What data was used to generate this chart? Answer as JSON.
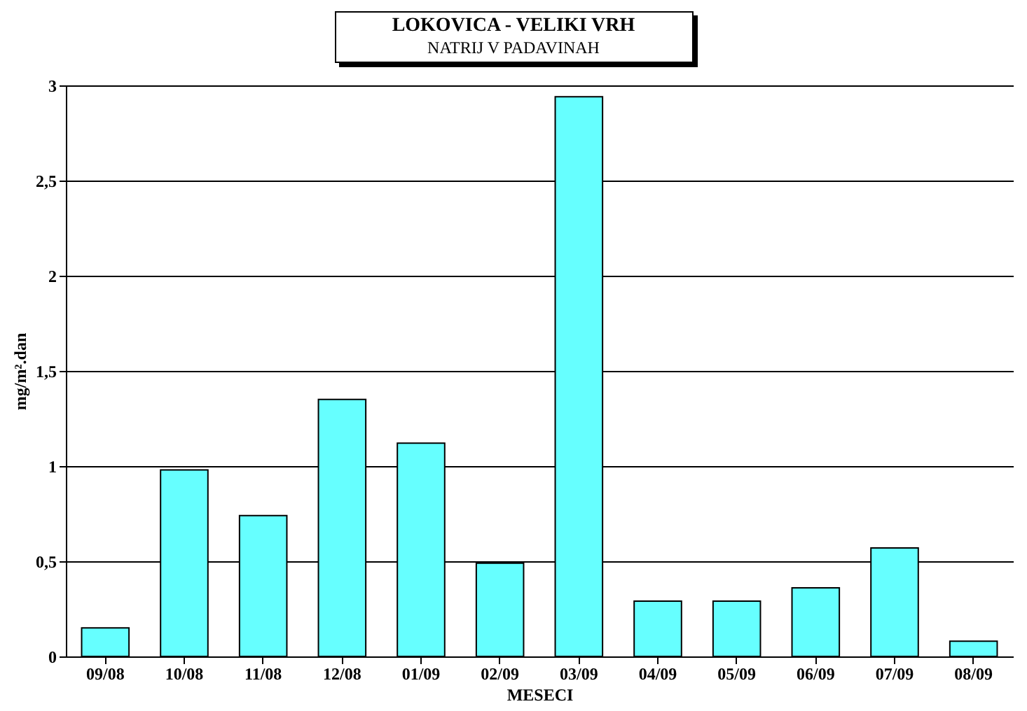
{
  "chart_data": {
    "type": "bar",
    "title": "LOKOVICA - VELIKI VRH",
    "subtitle": "NATRIJ V PADAVINAH",
    "xlabel": "MESECI",
    "ylabel": "mg/m².dan",
    "categories": [
      "09/08",
      "10/08",
      "11/08",
      "12/08",
      "01/09",
      "02/09",
      "03/09",
      "04/09",
      "05/09",
      "06/09",
      "07/09",
      "08/09"
    ],
    "values": [
      0.15,
      0.98,
      0.74,
      1.35,
      1.12,
      0.49,
      2.94,
      0.29,
      0.29,
      0.36,
      0.57,
      0.08
    ],
    "color": "#66ffff",
    "ylim": [
      0,
      3
    ],
    "yticks": [
      0,
      {
        "value": 0.5,
        "label": "0,5"
      },
      1,
      {
        "value": 1.5,
        "label": "1,5"
      },
      2,
      {
        "value": 2.5,
        "label": "2,5"
      },
      3
    ],
    "grid": "y"
  }
}
